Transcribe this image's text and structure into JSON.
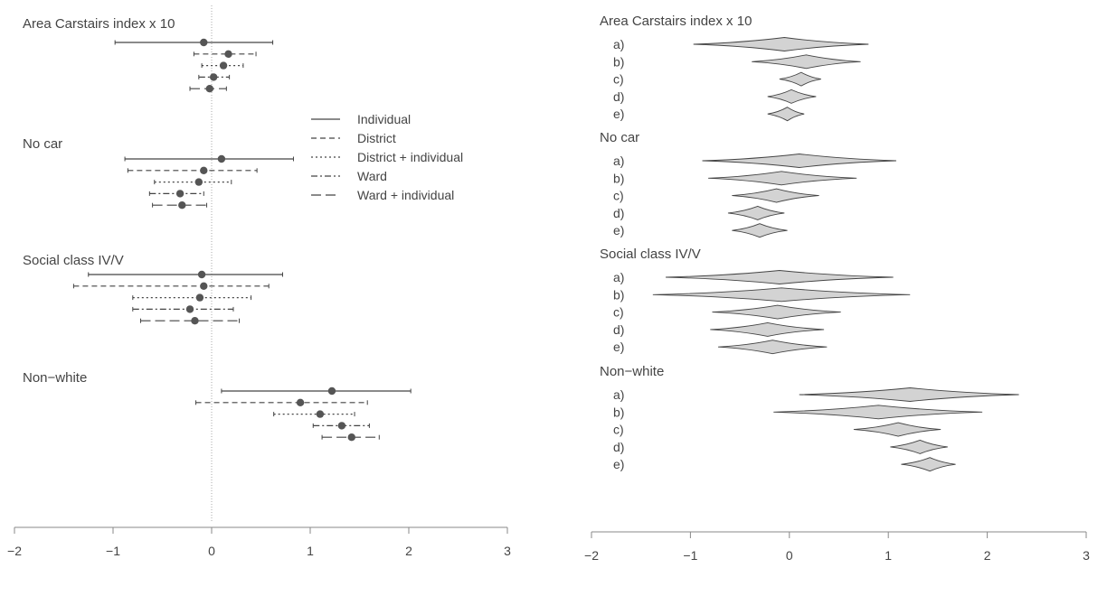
{
  "chart_data": [
    {
      "type": "forest",
      "xlim": [
        -2,
        3
      ],
      "x_ticks": [
        "−2",
        "−1",
        "0",
        "1",
        "2",
        "3"
      ],
      "x_tick_values": [
        -2,
        -1,
        0,
        1,
        2,
        3
      ],
      "reference_line": 0,
      "legend_placement": "center-right",
      "series": [
        {
          "name": "Individual",
          "line_style": "solid"
        },
        {
          "name": "District",
          "line_style": "dashed"
        },
        {
          "name": "District + individual",
          "line_style": "dotted"
        },
        {
          "name": "Ward",
          "line_style": "dashdot"
        },
        {
          "name": "Ward + individual",
          "line_style": "longdash"
        }
      ],
      "groups": [
        {
          "label": "Area Carstairs index x 10",
          "estimates": [
            {
              "point": -0.08,
              "lo": -0.98,
              "hi": 0.62
            },
            {
              "point": 0.17,
              "lo": -0.18,
              "hi": 0.45
            },
            {
              "point": 0.12,
              "lo": -0.1,
              "hi": 0.32
            },
            {
              "point": 0.02,
              "lo": -0.13,
              "hi": 0.18
            },
            {
              "point": -0.02,
              "lo": -0.22,
              "hi": 0.15
            }
          ]
        },
        {
          "label": "No car",
          "estimates": [
            {
              "point": 0.1,
              "lo": -0.88,
              "hi": 0.83
            },
            {
              "point": -0.08,
              "lo": -0.85,
              "hi": 0.46
            },
            {
              "point": -0.13,
              "lo": -0.58,
              "hi": 0.2
            },
            {
              "point": -0.32,
              "lo": -0.63,
              "hi": -0.08
            },
            {
              "point": -0.3,
              "lo": -0.6,
              "hi": -0.05
            }
          ]
        },
        {
          "label": "Social class IV/V",
          "estimates": [
            {
              "point": -0.1,
              "lo": -1.25,
              "hi": 0.72
            },
            {
              "point": -0.08,
              "lo": -1.4,
              "hi": 0.58
            },
            {
              "point": -0.12,
              "lo": -0.8,
              "hi": 0.4
            },
            {
              "point": -0.22,
              "lo": -0.8,
              "hi": 0.22
            },
            {
              "point": -0.17,
              "lo": -0.72,
              "hi": 0.28
            }
          ]
        },
        {
          "label": "Non−white",
          "estimates": [
            {
              "point": 1.22,
              "lo": 0.1,
              "hi": 2.02
            },
            {
              "point": 0.9,
              "lo": -0.16,
              "hi": 1.58
            },
            {
              "point": 1.1,
              "lo": 0.63,
              "hi": 1.45
            },
            {
              "point": 1.32,
              "lo": 1.03,
              "hi": 1.6
            },
            {
              "point": 1.42,
              "lo": 1.12,
              "hi": 1.7
            }
          ]
        }
      ]
    },
    {
      "type": "violin-interval",
      "xlim": [
        -2,
        3
      ],
      "x_ticks": [
        "−2",
        "−1",
        "0",
        "1",
        "2",
        "3"
      ],
      "x_tick_values": [
        -2,
        -1,
        0,
        1,
        2,
        3
      ],
      "groups": [
        {
          "label": "Area Carstairs index x 10",
          "rows": [
            {
              "label": "a)",
              "point": -0.05,
              "lo": -0.97,
              "hi": 0.8
            },
            {
              "label": "b)",
              "point": 0.17,
              "lo": -0.38,
              "hi": 0.72
            },
            {
              "label": "c)",
              "point": 0.12,
              "lo": -0.1,
              "hi": 0.32
            },
            {
              "label": "d)",
              "point": 0.02,
              "lo": -0.22,
              "hi": 0.27
            },
            {
              "label": "e)",
              "point": -0.02,
              "lo": -0.22,
              "hi": 0.15
            }
          ]
        },
        {
          "label": "No car",
          "rows": [
            {
              "label": "a)",
              "point": 0.1,
              "lo": -0.88,
              "hi": 1.08
            },
            {
              "label": "b)",
              "point": -0.08,
              "lo": -0.82,
              "hi": 0.68
            },
            {
              "label": "c)",
              "point": -0.13,
              "lo": -0.58,
              "hi": 0.3
            },
            {
              "label": "d)",
              "point": -0.32,
              "lo": -0.62,
              "hi": -0.05
            },
            {
              "label": "e)",
              "point": -0.3,
              "lo": -0.58,
              "hi": -0.02
            }
          ]
        },
        {
          "label": "Social class IV/V",
          "rows": [
            {
              "label": "a)",
              "point": -0.1,
              "lo": -1.25,
              "hi": 1.05
            },
            {
              "label": "b)",
              "point": -0.08,
              "lo": -1.38,
              "hi": 1.22
            },
            {
              "label": "c)",
              "point": -0.12,
              "lo": -0.78,
              "hi": 0.52
            },
            {
              "label": "d)",
              "point": -0.22,
              "lo": -0.8,
              "hi": 0.35
            },
            {
              "label": "e)",
              "point": -0.17,
              "lo": -0.72,
              "hi": 0.38
            }
          ]
        },
        {
          "label": "Non−white",
          "rows": [
            {
              "label": "a)",
              "point": 1.22,
              "lo": 0.1,
              "hi": 2.32
            },
            {
              "label": "b)",
              "point": 0.9,
              "lo": -0.16,
              "hi": 1.95
            },
            {
              "label": "c)",
              "point": 1.1,
              "lo": 0.65,
              "hi": 1.53
            },
            {
              "label": "d)",
              "point": 1.32,
              "lo": 1.02,
              "hi": 1.6
            },
            {
              "label": "e)",
              "point": 1.42,
              "lo": 1.13,
              "hi": 1.68
            }
          ]
        }
      ]
    }
  ],
  "colors": {
    "line": "#444444",
    "point": "#555555",
    "fill": "#d3d3d3",
    "reference": "#aaaaaa"
  }
}
